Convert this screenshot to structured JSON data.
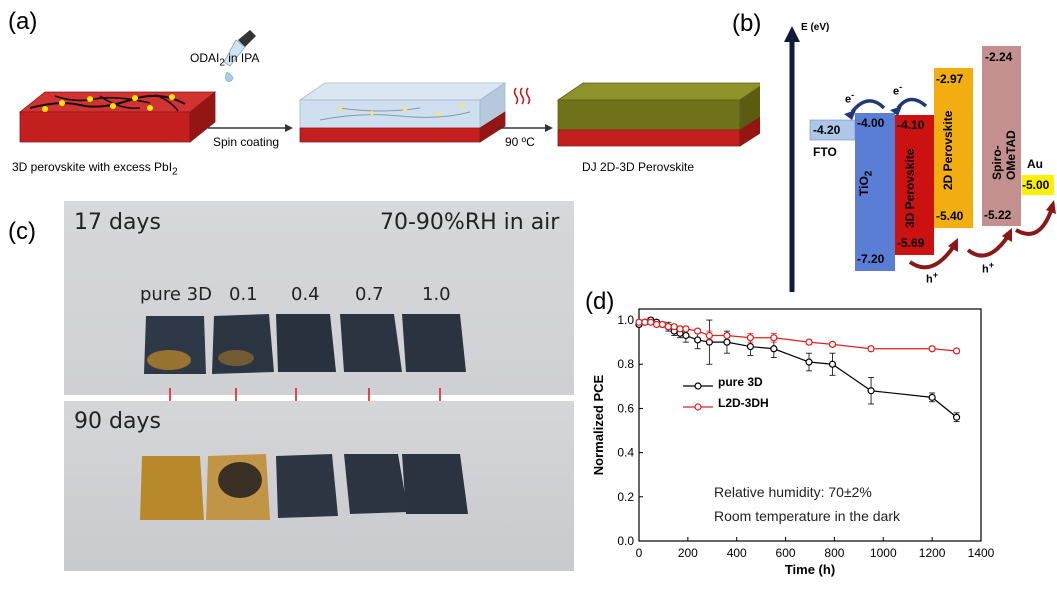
{
  "panel_a": {
    "label": "(a)",
    "reagent_label": "ODAI",
    "reagent_sub": "2",
    "reagent_suffix": " in IPA",
    "step1_label": "Spin coating",
    "step2_label": "90 ºC",
    "caption_left": "3D perovskite with excess PbI",
    "caption_left_sub": "2",
    "caption_right": "DJ 2D-3D Perovskite"
  },
  "panel_b": {
    "label": "(b)",
    "axis_label": "E (eV)",
    "electron_label": "e",
    "hole_label": "h",
    "layers": [
      {
        "name": "FTO",
        "top": "-4.20",
        "color": "#aec6e8"
      },
      {
        "name": "TiO",
        "name_sub": "2",
        "top": "-4.00",
        "bottom": "-7.20",
        "color": "#5a7ed6"
      },
      {
        "name": "3D Perovskite",
        "top": "-4.10",
        "bottom": "-5.69",
        "color": "#cc1111"
      },
      {
        "name": "2D Perovskite",
        "top": "-2.97",
        "bottom": "-5.40",
        "color": "#f2ae10"
      },
      {
        "name": "Spiro-OMeTAD",
        "top": "-2.24",
        "bottom": "-5.22",
        "color": "#c48f8f"
      },
      {
        "name": "Au",
        "top": "-5.00",
        "color": "#fff000"
      }
    ]
  },
  "panel_c": {
    "label": "(c)",
    "top_days": "17 days",
    "humidity": "70-90%RH in air",
    "samples": [
      "pure 3D",
      "0.1",
      "0.4",
      "0.7",
      "1.0"
    ],
    "bottom_days": "90 days",
    "colors": {
      "photo_bg": "#d9dade",
      "film_dark": "#2a3340",
      "film_yellow": "#b8892a",
      "arrow": "#e02020"
    }
  },
  "panel_d": {
    "label": "(d)",
    "annotation_line1": "Relative humidity: 70±2%",
    "annotation_line2": "Room temperature in the dark",
    "chart_data": {
      "type": "line",
      "xlabel": "Time (h)",
      "ylabel": "Normalized PCE",
      "xlim": [
        0,
        1400
      ],
      "ylim": [
        0.0,
        1.05
      ],
      "xticks": [
        0,
        200,
        400,
        600,
        800,
        1000,
        1200,
        1400
      ],
      "yticks": [
        0.0,
        0.2,
        0.4,
        0.6,
        0.8,
        1.0
      ],
      "legend_position": "center-left",
      "series": [
        {
          "name": "pure 3D",
          "color": "#000000",
          "points": [
            {
              "x": 0,
              "y": 0.98,
              "err": 0.01
            },
            {
              "x": 24,
              "y": 0.99,
              "err": 0.01
            },
            {
              "x": 48,
              "y": 1.0,
              "err": 0.01
            },
            {
              "x": 72,
              "y": 0.99,
              "err": 0.01
            },
            {
              "x": 96,
              "y": 0.98,
              "err": 0.01
            },
            {
              "x": 120,
              "y": 0.97,
              "err": 0.02
            },
            {
              "x": 144,
              "y": 0.95,
              "err": 0.02
            },
            {
              "x": 168,
              "y": 0.94,
              "err": 0.02
            },
            {
              "x": 192,
              "y": 0.93,
              "err": 0.03
            },
            {
              "x": 240,
              "y": 0.91,
              "err": 0.04
            },
            {
              "x": 288,
              "y": 0.9,
              "err": 0.1
            },
            {
              "x": 360,
              "y": 0.9,
              "err": 0.05
            },
            {
              "x": 456,
              "y": 0.88,
              "err": 0.04
            },
            {
              "x": 552,
              "y": 0.87,
              "err": 0.04
            },
            {
              "x": 696,
              "y": 0.81,
              "err": 0.04
            },
            {
              "x": 792,
              "y": 0.8,
              "err": 0.05
            },
            {
              "x": 950,
              "y": 0.68,
              "err": 0.06
            },
            {
              "x": 1200,
              "y": 0.65,
              "err": 0.02
            },
            {
              "x": 1300,
              "y": 0.56,
              "err": 0.02
            }
          ]
        },
        {
          "name": "L2D-3DH",
          "color": "#e02020",
          "points": [
            {
              "x": 0,
              "y": 0.99,
              "err": 0.01
            },
            {
              "x": 24,
              "y": 0.99,
              "err": 0.01
            },
            {
              "x": 48,
              "y": 0.99,
              "err": 0.01
            },
            {
              "x": 72,
              "y": 0.98,
              "err": 0.01
            },
            {
              "x": 96,
              "y": 0.98,
              "err": 0.01
            },
            {
              "x": 120,
              "y": 0.97,
              "err": 0.01
            },
            {
              "x": 144,
              "y": 0.97,
              "err": 0.01
            },
            {
              "x": 168,
              "y": 0.96,
              "err": 0.01
            },
            {
              "x": 192,
              "y": 0.96,
              "err": 0.01
            },
            {
              "x": 240,
              "y": 0.95,
              "err": 0.01
            },
            {
              "x": 288,
              "y": 0.93,
              "err": 0.02
            },
            {
              "x": 360,
              "y": 0.93,
              "err": 0.01
            },
            {
              "x": 456,
              "y": 0.92,
              "err": 0.02
            },
            {
              "x": 552,
              "y": 0.92,
              "err": 0.02
            },
            {
              "x": 696,
              "y": 0.9,
              "err": 0.01
            },
            {
              "x": 792,
              "y": 0.89,
              "err": 0.01
            },
            {
              "x": 950,
              "y": 0.87,
              "err": 0.01
            },
            {
              "x": 1200,
              "y": 0.87,
              "err": 0.01
            },
            {
              "x": 1300,
              "y": 0.86,
              "err": 0.01
            }
          ]
        }
      ]
    }
  }
}
